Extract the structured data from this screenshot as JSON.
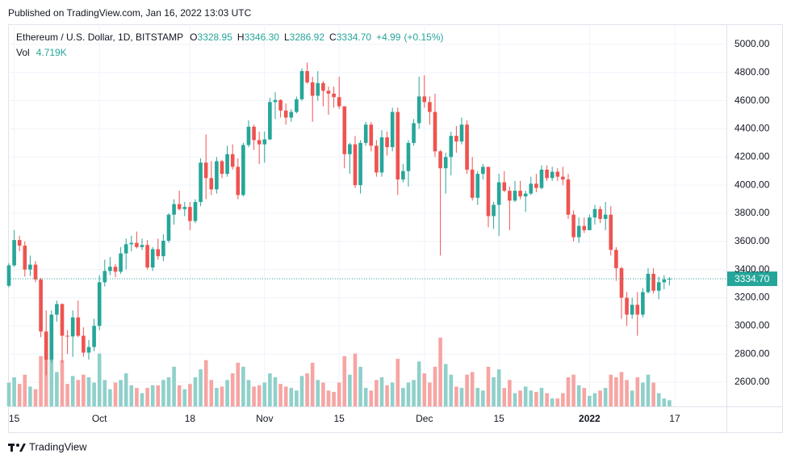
{
  "chart_data": {
    "type": "candlestick",
    "published": "Published on TradingView.com, Jan 16, 2022 13:03 UTC",
    "title": "Ethereum / U.S. Dollar, 1D, BITSTAMP",
    "ohlc_header": {
      "open": {
        "name": "O",
        "value": 3328.95,
        "label": "3328.95"
      },
      "high": {
        "name": "H",
        "value": 3346.3,
        "label": "3346.30"
      },
      "low": {
        "name": "L",
        "value": 3286.92,
        "label": "3286.92"
      },
      "close": {
        "name": "C",
        "value": 3334.7,
        "label": "3334.70"
      },
      "change": {
        "value": 4.99,
        "label": "+4.99"
      },
      "change_pct": {
        "value": 0.15,
        "label": "(+0.15%)"
      }
    },
    "volume_title": "Vol",
    "volume_last": {
      "value": 4.719,
      "label": "4.719K"
    },
    "brand": "TradingView",
    "up_color": "#26a69a",
    "down_color": "#ef5350",
    "volume_up_color": "#8fd0ca",
    "volume_down_color": "#f6a5a3",
    "grid": true,
    "ylim": [
      2428,
      5143
    ],
    "xlim": [
      -0.15,
      134.7
    ],
    "yticks": [
      {
        "value": 2600,
        "label": "2600.00"
      },
      {
        "value": 2800,
        "label": "2800.00"
      },
      {
        "value": 3000,
        "label": "3000.00"
      },
      {
        "value": 3200,
        "label": "3200.00"
      },
      {
        "value": 3400,
        "label": "3400.00"
      },
      {
        "value": 3600,
        "label": "3600.00"
      },
      {
        "value": 3800,
        "label": "3800.00"
      },
      {
        "value": 4000,
        "label": "4000.00"
      },
      {
        "value": 4200,
        "label": "4200.00"
      },
      {
        "value": 4400,
        "label": "4400.00"
      },
      {
        "value": 4600,
        "label": "4600.00"
      },
      {
        "value": 4800,
        "label": "4800.00"
      },
      {
        "value": 5000,
        "label": "5000.00"
      }
    ],
    "xticks": [
      {
        "value": 1,
        "label": "15"
      },
      {
        "value": 17,
        "label": "Oct"
      },
      {
        "value": 34,
        "label": "18"
      },
      {
        "value": 48,
        "label": "Nov"
      },
      {
        "value": 62,
        "label": "15"
      },
      {
        "value": 78,
        "label": "Dec"
      },
      {
        "value": 92,
        "label": "15"
      },
      {
        "value": 109,
        "label": "2022"
      },
      {
        "value": 125,
        "label": "17"
      }
    ],
    "open": [
      3285,
      3430,
      3610,
      3570,
      3400,
      3435,
      3330,
      2960,
      2760,
      3080,
      3155,
      2930,
      2925,
      3060,
      2930,
      2810,
      2850,
      3000,
      3310,
      3390,
      3420,
      3385,
      3515,
      3580,
      3590,
      3560,
      3575,
      3415,
      3545,
      3495,
      3605,
      3790,
      3865,
      3830,
      3845,
      3745,
      3880,
      4160,
      4050,
      3970,
      4170,
      4080,
      4220,
      4130,
      3930,
      4285,
      4415,
      4320,
      4290,
      4325,
      4590,
      4605,
      4530,
      4480,
      4520,
      4610,
      4810,
      4730,
      4635,
      4725,
      4670,
      4650,
      4625,
      4560,
      4220,
      4290,
      4000,
      4300,
      4430,
      4280,
      4090,
      4340,
      4270,
      4520,
      4040,
      4100,
      4300,
      4440,
      4630,
      4590,
      4520,
      4240,
      4120,
      4200,
      4350,
      4310,
      4430,
      4110,
      3910,
      4080,
      4130,
      3780,
      3860,
      4020,
      3960,
      3890,
      3960,
      3920,
      3940,
      4010,
      3980,
      4110,
      4050,
      4095,
      4060,
      4040,
      3790,
      3630,
      3710,
      3680,
      3770,
      3830,
      3760,
      3790,
      3540,
      3410,
      3200,
      3080,
      3150,
      3080,
      3240,
      3370,
      3250,
      3310,
      3328.95
    ],
    "high": [
      3445,
      3680,
      3640,
      3600,
      3500,
      3460,
      3340,
      3110,
      3110,
      3180,
      3160,
      2970,
      3110,
      3180,
      2990,
      2900,
      3050,
      3360,
      3470,
      3490,
      3440,
      3560,
      3620,
      3640,
      3670,
      3620,
      3610,
      3560,
      3620,
      3650,
      3800,
      3900,
      3960,
      3880,
      3880,
      3900,
      4190,
      4360,
      4170,
      4200,
      4180,
      4280,
      4290,
      4190,
      4300,
      4460,
      4430,
      4380,
      4380,
      4620,
      4660,
      4610,
      4580,
      4540,
      4630,
      4830,
      4870,
      4770,
      4810,
      4740,
      4700,
      4700,
      4770,
      4560,
      4300,
      4350,
      4320,
      4450,
      4450,
      4320,
      4390,
      4380,
      4550,
      4550,
      4150,
      4320,
      4470,
      4770,
      4780,
      4630,
      4650,
      4250,
      4230,
      4380,
      4420,
      4480,
      4460,
      4200,
      4100,
      4150,
      4130,
      3880,
      4080,
      4100,
      3990,
      4030,
      4030,
      3960,
      4060,
      4080,
      4140,
      4140,
      4130,
      4120,
      4130,
      4080,
      3820,
      3770,
      3770,
      3790,
      3860,
      3850,
      3880,
      3850,
      3560,
      3420,
      3240,
      3200,
      3240,
      3270,
      3410,
      3410,
      3350,
      3360,
      3346.3
    ],
    "low": [
      3275,
      3420,
      3530,
      3350,
      3355,
      3310,
      2920,
      2650,
      2740,
      3030,
      2740,
      2800,
      2780,
      2920,
      2780,
      2760,
      2820,
      2970,
      3280,
      3360,
      3345,
      3370,
      3400,
      3530,
      3550,
      3540,
      3400,
      3390,
      3470,
      3460,
      3590,
      3720,
      3820,
      3780,
      3680,
      3730,
      3850,
      3900,
      3930,
      3940,
      4050,
      4060,
      4110,
      3900,
      3920,
      4270,
      4250,
      4150,
      4160,
      4320,
      4470,
      4480,
      4430,
      4450,
      4510,
      4600,
      4720,
      4450,
      4600,
      4560,
      4500,
      4550,
      4540,
      4120,
      4080,
      3980,
      3940,
      4280,
      4240,
      4060,
      4060,
      4210,
      4240,
      3930,
      4020,
      3990,
      4280,
      4400,
      4550,
      4430,
      4200,
      3500,
      3940,
      4070,
      4230,
      4290,
      4080,
      3890,
      3860,
      4040,
      3700,
      3690,
      3640,
      3950,
      3680,
      3880,
      3900,
      3810,
      3930,
      3950,
      3970,
      4030,
      4030,
      4030,
      4000,
      3760,
      3600,
      3590,
      3660,
      3680,
      3720,
      3730,
      3680,
      3500,
      3320,
      3050,
      3000,
      3050,
      2930,
      3060,
      3230,
      3230,
      3190,
      3260,
      3286.92
    ],
    "close": [
      3430,
      3610,
      3570,
      3400,
      3435,
      3330,
      2960,
      2760,
      3080,
      3155,
      2930,
      2925,
      3060,
      2930,
      2810,
      2850,
      3000,
      3310,
      3390,
      3420,
      3385,
      3515,
      3580,
      3590,
      3560,
      3575,
      3415,
      3545,
      3495,
      3605,
      3790,
      3865,
      3830,
      3845,
      3745,
      3880,
      4160,
      4050,
      3970,
      4170,
      4080,
      4220,
      4130,
      3930,
      4285,
      4415,
      4320,
      4290,
      4325,
      4590,
      4605,
      4530,
      4480,
      4520,
      4610,
      4810,
      4730,
      4635,
      4725,
      4670,
      4650,
      4625,
      4560,
      4220,
      4290,
      4000,
      4300,
      4430,
      4280,
      4090,
      4340,
      4270,
      4520,
      4040,
      4100,
      4300,
      4440,
      4630,
      4590,
      4520,
      4240,
      4120,
      4200,
      4350,
      4310,
      4430,
      4110,
      3910,
      4080,
      4130,
      3780,
      3860,
      4020,
      3960,
      3890,
      3960,
      3920,
      3940,
      4010,
      3980,
      4110,
      4050,
      4095,
      4060,
      4040,
      3790,
      3630,
      3710,
      3680,
      3770,
      3830,
      3760,
      3790,
      3540,
      3410,
      3200,
      3080,
      3150,
      3080,
      3240,
      3370,
      3250,
      3310,
      3330,
      3334.7
    ],
    "volume": [
      18,
      22,
      17,
      24,
      15,
      13,
      38,
      55,
      43,
      26,
      35,
      17,
      23,
      20,
      24,
      22,
      18,
      40,
      20,
      13,
      18,
      20,
      25,
      16,
      14,
      10,
      14,
      16,
      16,
      20,
      22,
      30,
      16,
      13,
      17,
      22,
      28,
      35,
      20,
      14,
      15,
      20,
      25,
      33,
      30,
      20,
      15,
      16,
      18,
      25,
      22,
      17,
      15,
      14,
      12,
      23,
      25,
      33,
      20,
      18,
      12,
      11,
      18,
      38,
      24,
      40,
      30,
      14,
      12,
      20,
      22,
      16,
      18,
      36,
      14,
      18,
      20,
      34,
      25,
      18,
      30,
      52,
      32,
      24,
      15,
      14,
      24,
      26,
      14,
      12,
      30,
      22,
      28,
      14,
      20,
      10,
      12,
      15,
      12,
      11,
      14,
      10,
      6,
      6,
      10,
      22,
      24,
      16,
      14,
      8,
      10,
      12,
      14,
      24,
      22,
      26,
      20,
      12,
      22,
      18,
      24,
      18,
      10,
      6,
      4.719
    ]
  }
}
